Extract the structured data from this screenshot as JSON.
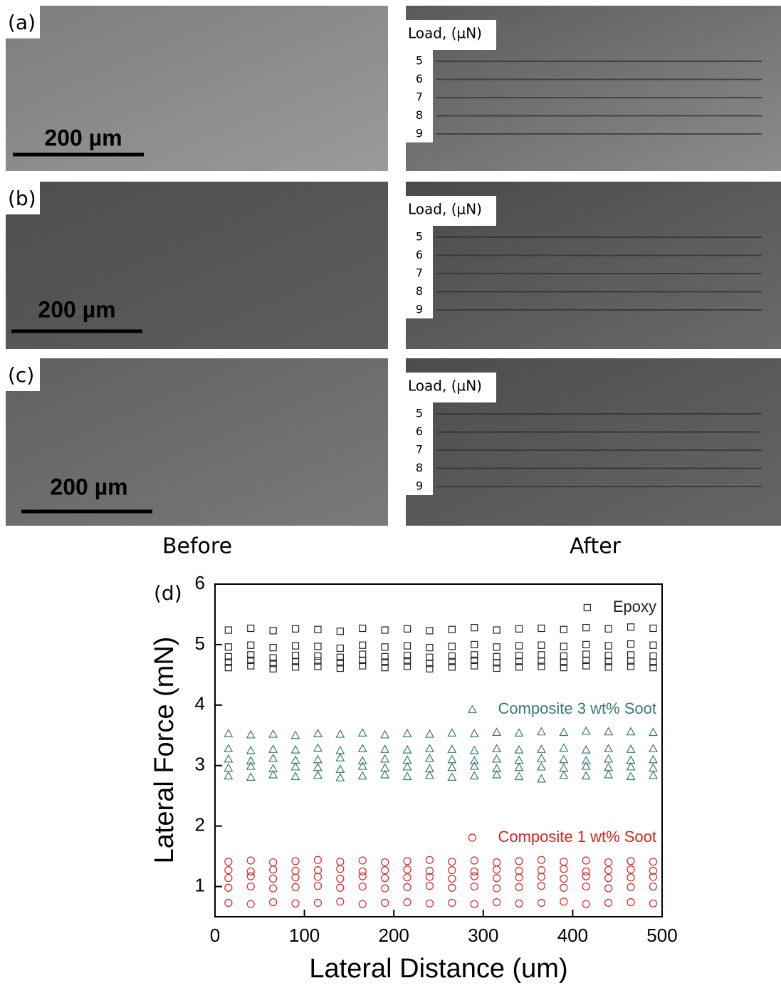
{
  "panels": [
    {
      "label": "(a)",
      "scale_bar": "200 µm",
      "load_title": "Load, (µN)",
      "loads": [
        "5",
        "6",
        "7",
        "8",
        "9"
      ]
    },
    {
      "label": "(b)",
      "scale_bar": "200 µm",
      "load_title": "Load, (µN)",
      "loads": [
        "5",
        "6",
        "7",
        "8",
        "9"
      ]
    },
    {
      "label": "(c)",
      "scale_bar": "200 µm",
      "load_title": "Load, (µN)",
      "loads": [
        "5",
        "6",
        "7",
        "8",
        "9"
      ]
    }
  ],
  "captions": {
    "before": "Before",
    "after": "After"
  },
  "chart_data": {
    "type": "scatter",
    "panel_label": "(d)",
    "x_label": "Lateral Distance (um)",
    "y_label": "Lateral Force (mN)",
    "xlim": [
      0,
      500
    ],
    "ylim": [
      0.5,
      6
    ],
    "xticks": [
      0,
      100,
      200,
      300,
      400,
      500
    ],
    "yticks": [
      1,
      2,
      3,
      4,
      5,
      6
    ],
    "x": [
      15,
      40,
      65,
      90,
      115,
      140,
      165,
      190,
      215,
      240,
      265,
      290,
      315,
      340,
      365,
      390,
      415,
      440,
      465,
      490
    ],
    "series": [
      {
        "name": "Epoxy",
        "color": "#222222",
        "marker": "square",
        "lines": [
          {
            "values": [
              5.24,
              5.27,
              5.23,
              5.26,
              5.25,
              5.22,
              5.27,
              5.24,
              5.26,
              5.23,
              5.25,
              5.28,
              5.24,
              5.26,
              5.27,
              5.25,
              5.28,
              5.26,
              5.29,
              5.27
            ]
          },
          {
            "values": [
              4.96,
              4.99,
              4.95,
              4.98,
              4.97,
              4.94,
              4.99,
              4.96,
              4.98,
              4.95,
              4.97,
              5.0,
              4.96,
              4.98,
              4.99,
              4.97,
              5.0,
              4.98,
              5.01,
              4.99
            ]
          },
          {
            "values": [
              4.8,
              4.83,
              4.78,
              4.82,
              4.81,
              4.79,
              4.84,
              4.8,
              4.82,
              4.79,
              4.81,
              4.83,
              4.8,
              4.82,
              4.83,
              4.81,
              4.84,
              4.82,
              4.83,
              4.81
            ]
          },
          {
            "values": [
              4.71,
              4.74,
              4.69,
              4.72,
              4.73,
              4.7,
              4.74,
              4.71,
              4.73,
              4.69,
              4.72,
              4.74,
              4.7,
              4.72,
              4.73,
              4.71,
              4.74,
              4.72,
              4.73,
              4.71
            ]
          },
          {
            "values": [
              4.62,
              4.65,
              4.6,
              4.63,
              4.64,
              4.61,
              4.65,
              4.62,
              4.64,
              4.6,
              4.63,
              4.65,
              4.61,
              4.63,
              4.64,
              4.62,
              4.65,
              4.63,
              4.64,
              4.62
            ]
          }
        ]
      },
      {
        "name": "Composite 3 wt% Soot",
        "color": "#3a7878",
        "marker": "triangle",
        "lines": [
          {
            "values": [
              3.53,
              3.51,
              3.52,
              3.5,
              3.53,
              3.52,
              3.54,
              3.51,
              3.53,
              3.52,
              3.54,
              3.53,
              3.55,
              3.54,
              3.56,
              3.55,
              3.57,
              3.56,
              3.56,
              3.55
            ]
          },
          {
            "values": [
              3.28,
              3.25,
              3.27,
              3.26,
              3.29,
              3.25,
              3.28,
              3.27,
              3.26,
              3.28,
              3.27,
              3.25,
              3.28,
              3.26,
              3.27,
              3.29,
              3.26,
              3.28,
              3.27,
              3.28
            ]
          },
          {
            "values": [
              3.11,
              3.08,
              3.12,
              3.09,
              3.1,
              3.13,
              3.08,
              3.11,
              3.09,
              3.12,
              3.1,
              3.08,
              3.11,
              3.09,
              3.12,
              3.1,
              3.08,
              3.11,
              3.09,
              3.1
            ]
          },
          {
            "values": [
              2.96,
              2.99,
              2.95,
              2.98,
              2.97,
              2.94,
              2.99,
              2.96,
              2.98,
              2.95,
              2.97,
              2.99,
              2.95,
              2.97,
              2.98,
              2.96,
              2.99,
              2.97,
              2.98,
              2.96
            ]
          },
          {
            "values": [
              2.83,
              2.81,
              2.85,
              2.82,
              2.84,
              2.8,
              2.83,
              2.85,
              2.82,
              2.84,
              2.81,
              2.83,
              2.85,
              2.82,
              2.78,
              2.84,
              2.83,
              2.85,
              2.82,
              2.84
            ]
          }
        ]
      },
      {
        "name": "Composite 1 wt% Soot",
        "color": "#d42222",
        "marker": "circle",
        "lines": [
          {
            "values": [
              1.41,
              1.43,
              1.4,
              1.42,
              1.44,
              1.41,
              1.43,
              1.4,
              1.42,
              1.44,
              1.41,
              1.43,
              1.4,
              1.42,
              1.44,
              1.41,
              1.43,
              1.4,
              1.42,
              1.41
            ]
          },
          {
            "values": [
              1.27,
              1.25,
              1.28,
              1.26,
              1.27,
              1.29,
              1.25,
              1.27,
              1.28,
              1.26,
              1.27,
              1.25,
              1.28,
              1.26,
              1.27,
              1.29,
              1.25,
              1.27,
              1.28,
              1.26
            ]
          },
          {
            "values": [
              1.14,
              1.17,
              1.13,
              1.15,
              1.16,
              1.13,
              1.17,
              1.14,
              1.15,
              1.16,
              1.13,
              1.17,
              1.14,
              1.15,
              1.16,
              1.13,
              1.17,
              1.14,
              1.15,
              1.16
            ]
          },
          {
            "values": [
              0.98,
              1.0,
              0.97,
              0.99,
              1.01,
              0.98,
              1.0,
              0.97,
              0.99,
              1.01,
              0.98,
              1.0,
              0.97,
              0.99,
              1.01,
              0.98,
              1.0,
              0.97,
              0.99,
              1.0
            ]
          },
          {
            "values": [
              0.73,
              0.71,
              0.74,
              0.72,
              0.73,
              0.75,
              0.71,
              0.73,
              0.74,
              0.72,
              0.73,
              0.71,
              0.74,
              0.72,
              0.73,
              0.75,
              0.71,
              0.73,
              0.74,
              0.72
            ]
          }
        ]
      }
    ]
  }
}
